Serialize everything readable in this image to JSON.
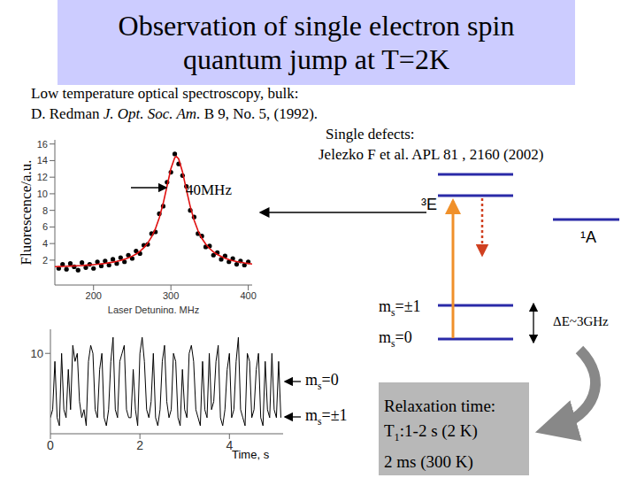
{
  "title": [
    "Observation of single electron spin",
    "quantum jump at T=2K"
  ],
  "references": {
    "bulk": {
      "heading": "Low temperature optical spectroscopy, bulk:",
      "author": "D. Redman",
      "journal": "J. Opt. Soc. Am.",
      "details": "B 9, No. 5, (1992)."
    },
    "single": {
      "heading": "Single defects:",
      "citation": "Jelezko F et al. APL 81 , 2160 (2002)"
    }
  },
  "chart_data": [
    {
      "type": "scatter",
      "y_label": "Fluorescence/a.u.",
      "x_label": "Laser Detuning, MHz",
      "annotation": "40MHz",
      "xlim": [
        150,
        405
      ],
      "xticks": [
        200,
        300,
        400
      ],
      "ylim": [
        -1,
        16.5
      ],
      "yticks": [
        2,
        4,
        6,
        8,
        10,
        12,
        14,
        16
      ],
      "grid": false,
      "series": [
        {
          "type": "scatter",
          "marker": "circle",
          "color": "#000000",
          "x": [
            155,
            160,
            165,
            170,
            175,
            180,
            185,
            190,
            195,
            200,
            205,
            210,
            215,
            220,
            225,
            230,
            235,
            240,
            245,
            250,
            255,
            260,
            265,
            270,
            275,
            280,
            285,
            290,
            295,
            300,
            305,
            310,
            315,
            320,
            325,
            330,
            335,
            340,
            345,
            350,
            355,
            360,
            365,
            370,
            375,
            380,
            385,
            390,
            395,
            400
          ],
          "values": [
            1.0,
            1.5,
            0.9,
            1.6,
            1.2,
            0.8,
            1.7,
            1.1,
            1.5,
            1.0,
            1.8,
            1.3,
            1.9,
            1.4,
            2.1,
            1.6,
            2.3,
            1.8,
            2.6,
            2.2,
            3.1,
            2.8,
            3.8,
            3.9,
            5.2,
            5.4,
            7.6,
            8.5,
            11.4,
            12.6,
            14.8,
            13.6,
            12.2,
            10.9,
            8.0,
            7.2,
            5.2,
            4.9,
            3.6,
            3.7,
            2.6,
            2.9,
            2.1,
            2.5,
            1.8,
            2.2,
            1.5,
            1.9,
            1.4,
            1.8
          ]
        },
        {
          "type": "line",
          "line_style": "solid",
          "color": "#e01010",
          "x": [
            150,
            155,
            160,
            165,
            170,
            175,
            180,
            185,
            190,
            195,
            200,
            205,
            210,
            215,
            220,
            225,
            230,
            235,
            240,
            245,
            250,
            255,
            260,
            265,
            270,
            275,
            280,
            285,
            290,
            295,
            300,
            305,
            307,
            310,
            315,
            320,
            325,
            330,
            335,
            340,
            345,
            350,
            355,
            360,
            365,
            370,
            375,
            380,
            385,
            390,
            395,
            400,
            405
          ],
          "values": [
            1.216,
            1.23,
            1.245,
            1.263,
            1.282,
            1.303,
            1.327,
            1.353,
            1.383,
            1.417,
            1.456,
            1.5,
            1.551,
            1.608,
            1.678,
            1.758,
            1.854,
            1.967,
            2.107,
            2.272,
            2.48,
            2.74,
            3.07,
            3.495,
            4.054,
            4.792,
            5.787,
            7.109,
            8.838,
            10.926,
            13.027,
            14.366,
            14.5,
            14.203,
            12.638,
            10.49,
            8.459,
            6.812,
            5.561,
            4.627,
            3.928,
            3.401,
            2.997,
            2.683,
            2.435,
            2.236,
            2.075,
            1.943,
            1.833,
            1.741,
            1.663,
            1.597,
            1.54
          ]
        }
      ]
    },
    {
      "type": "line",
      "x_label": "Time, s",
      "xlim": [
        0,
        5.2
      ],
      "xticks": [
        0,
        2,
        4
      ],
      "ylim": [
        0,
        13
      ],
      "yticks": [
        10
      ],
      "grid": false,
      "series": [
        {
          "type": "line",
          "line_style": "solid",
          "color": "#000000",
          "x": [
            0,
            0.05,
            0.1,
            0.15,
            0.2,
            0.25,
            0.3,
            0.35,
            0.4,
            0.45,
            0.5,
            0.55,
            0.6,
            0.65,
            0.7,
            0.75,
            0.8,
            0.85,
            0.9,
            0.95,
            1.0,
            1.05,
            1.1,
            1.15,
            1.2,
            1.25,
            1.3,
            1.35,
            1.4,
            1.45,
            1.5,
            1.55,
            1.6,
            1.65,
            1.7,
            1.75,
            1.8,
            1.85,
            1.9,
            1.95,
            2.0,
            2.05,
            2.1,
            2.15,
            2.2,
            2.25,
            2.3,
            2.35,
            2.4,
            2.45,
            2.5,
            2.55,
            2.6,
            2.65,
            2.7,
            2.75,
            2.8,
            2.85,
            2.9,
            2.95,
            3.0,
            3.05,
            3.1,
            3.15,
            3.2,
            3.25,
            3.3,
            3.35,
            3.4,
            3.45,
            3.5,
            3.55,
            3.6,
            3.65,
            3.7,
            3.75,
            3.8,
            3.85,
            3.9,
            3.95,
            4.0,
            4.05,
            4.1,
            4.15,
            4.2,
            4.25,
            4.3,
            4.35,
            4.4,
            4.45,
            4.5,
            4.55,
            4.6,
            4.65,
            4.7,
            4.75,
            4.8,
            4.85,
            4.9,
            4.95,
            5.0,
            5.05,
            5.1,
            5.15
          ],
          "values": [
            2,
            3,
            9,
            2,
            1,
            10,
            3,
            2,
            8,
            3,
            11,
            9,
            10,
            4,
            2,
            3,
            1,
            9,
            11,
            10,
            3,
            2,
            8,
            10,
            2,
            1,
            3,
            9,
            12,
            3,
            2,
            9,
            10,
            11,
            3,
            2,
            2,
            8,
            3,
            1,
            10,
            12,
            9,
            3,
            2,
            4,
            10,
            2,
            1,
            3,
            9,
            11,
            4,
            2,
            3,
            10,
            9,
            2,
            1,
            8,
            3,
            2,
            10,
            11,
            9,
            3,
            2,
            1,
            9,
            3,
            2,
            10,
            3,
            4,
            9,
            11,
            2,
            1,
            3,
            8,
            10,
            2,
            3,
            9,
            12,
            3,
            2,
            1,
            10,
            9,
            2,
            3,
            8,
            10,
            2,
            1,
            9,
            3,
            2,
            10,
            3,
            2,
            9,
            2
          ]
        }
      ],
      "state_labels": [
        {
          "text": "m",
          "sub": "s",
          "after": "=0"
        },
        {
          "text": "m",
          "sub": "s",
          "after": "=±1"
        }
      ]
    }
  ],
  "diagram": {
    "excited": "³E",
    "singlet": "¹A",
    "ground": [
      {
        "text": "m",
        "sub": "s",
        "after": "=±1"
      },
      {
        "text": "m",
        "sub": "s",
        "after": "=0"
      }
    ],
    "splitting": "ΔE~3GHz",
    "relaxation": [
      {
        "text": "Relaxation time:"
      },
      {
        "text": "T",
        "sub": "1",
        "after": ":1-2 s (2 K)"
      },
      {
        "text": "2 ms (300 K)"
      }
    ]
  }
}
